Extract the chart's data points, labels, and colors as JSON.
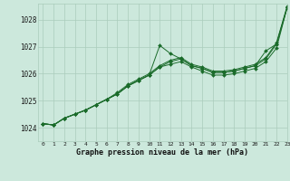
{
  "xlabel": "Graphe pression niveau de la mer (hPa)",
  "ylim": [
    1023.5,
    1028.6
  ],
  "xlim": [
    -0.5,
    23
  ],
  "yticks": [
    1024,
    1025,
    1026,
    1027,
    1028
  ],
  "xticks": [
    0,
    1,
    2,
    3,
    4,
    5,
    6,
    7,
    8,
    9,
    10,
    11,
    12,
    13,
    14,
    15,
    16,
    17,
    18,
    19,
    20,
    21,
    22,
    23
  ],
  "bg_color": "#cce8dc",
  "grid_color": "#aaccbb",
  "line_color": "#1a6b2a",
  "series": [
    [
      1024.15,
      1024.1,
      1024.35,
      1024.5,
      1024.65,
      1024.85,
      1025.05,
      1025.25,
      1025.55,
      1025.75,
      1025.95,
      1027.05,
      1026.75,
      1026.55,
      1026.3,
      1026.2,
      1026.05,
      1026.05,
      1026.1,
      1026.2,
      1026.3,
      1026.85,
      1027.1,
      1028.45
    ],
    [
      1024.15,
      1024.1,
      1024.35,
      1024.5,
      1024.65,
      1024.85,
      1025.05,
      1025.25,
      1025.55,
      1025.75,
      1025.95,
      1026.25,
      1026.45,
      1026.55,
      1026.3,
      1026.2,
      1026.05,
      1026.05,
      1026.1,
      1026.2,
      1026.3,
      1026.55,
      1027.1,
      1028.45
    ],
    [
      1024.15,
      1024.1,
      1024.35,
      1024.5,
      1024.65,
      1024.85,
      1025.05,
      1025.25,
      1025.55,
      1025.75,
      1025.95,
      1026.25,
      1026.35,
      1026.45,
      1026.25,
      1026.1,
      1025.95,
      1025.95,
      1026.0,
      1026.1,
      1026.2,
      1026.45,
      1026.95,
      1028.45
    ],
    [
      1024.15,
      1024.1,
      1024.35,
      1024.5,
      1024.65,
      1024.85,
      1025.05,
      1025.3,
      1025.6,
      1025.8,
      1026.0,
      1026.3,
      1026.5,
      1026.6,
      1026.35,
      1026.25,
      1026.1,
      1026.1,
      1026.15,
      1026.25,
      1026.35,
      1026.6,
      1027.15,
      1028.5
    ]
  ]
}
